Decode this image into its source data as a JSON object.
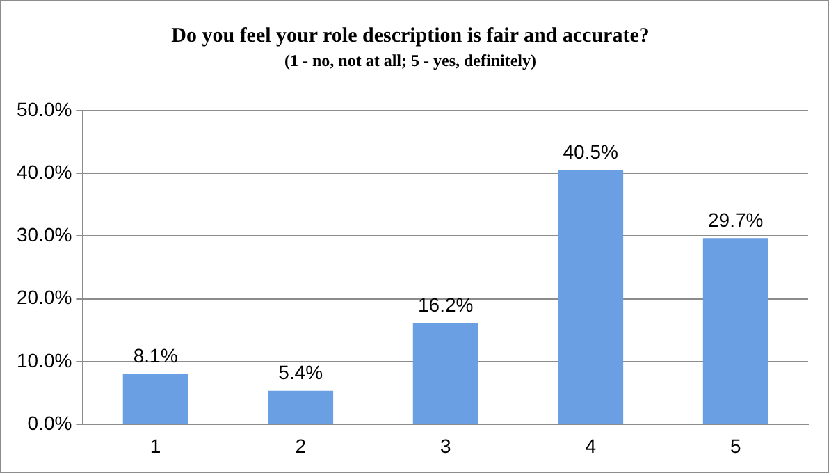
{
  "chart_data": {
    "type": "bar",
    "title": "Do you feel your role description is fair and accurate?",
    "subtitle": "(1 - no, not at all; 5 - yes, definitely)",
    "categories": [
      "1",
      "2",
      "3",
      "4",
      "5"
    ],
    "values": [
      8.1,
      5.4,
      16.2,
      40.5,
      29.7
    ],
    "value_labels": [
      "8.1%",
      "5.4%",
      "16.2%",
      "40.5%",
      "29.7%"
    ],
    "color": "#6a9fe3",
    "ylim": [
      0,
      50
    ],
    "yticks": [
      {
        "value": 0,
        "label": "0.0%"
      },
      {
        "value": 10,
        "label": "10.0%"
      },
      {
        "value": 20,
        "label": "20.0%"
      },
      {
        "value": 30,
        "label": "30.0%"
      },
      {
        "value": 40,
        "label": "40.0%"
      },
      {
        "value": 50,
        "label": "50.0%"
      }
    ],
    "grid": "y",
    "legend": false
  }
}
